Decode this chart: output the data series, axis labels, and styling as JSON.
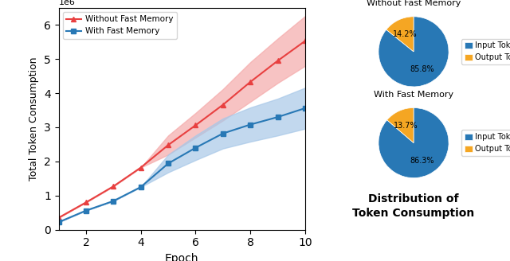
{
  "epochs": [
    1,
    2,
    3,
    4,
    5,
    6,
    7,
    8,
    9,
    10
  ],
  "without_fm_mean": [
    350000,
    800000,
    1270000,
    1820000,
    2480000,
    3060000,
    3660000,
    4330000,
    4950000,
    5530000
  ],
  "without_fm_lower": [
    350000,
    800000,
    1270000,
    1820000,
    2200000,
    2700000,
    3200000,
    3750000,
    4300000,
    4800000
  ],
  "without_fm_upper": [
    350000,
    800000,
    1270000,
    1820000,
    2760000,
    3420000,
    4120000,
    4910000,
    5600000,
    6260000
  ],
  "with_fm_mean": [
    220000,
    560000,
    840000,
    1250000,
    1940000,
    2400000,
    2820000,
    3080000,
    3300000,
    3560000
  ],
  "with_fm_lower": [
    220000,
    560000,
    840000,
    1250000,
    1680000,
    2040000,
    2380000,
    2580000,
    2760000,
    2960000
  ],
  "with_fm_upper": [
    220000,
    560000,
    840000,
    1250000,
    2200000,
    2760000,
    3260000,
    3580000,
    3840000,
    4160000
  ],
  "red_color": "#E84040",
  "blue_color": "#2878B5",
  "red_fill": "#F5AAAA",
  "blue_fill": "#A8C8E8",
  "pie1_sizes": [
    85.8,
    14.2
  ],
  "pie2_sizes": [
    86.3,
    13.7
  ],
  "pie_colors": [
    "#2878B5",
    "#F5A623"
  ],
  "pie1_labels": [
    "85.8%",
    "14.2%"
  ],
  "pie2_labels": [
    "86.3%",
    "13.7%"
  ],
  "legend_labels": [
    "Input Tokens",
    "Output Tokens"
  ],
  "pie1_title": "Without Fast Memory",
  "pie2_title": "With Fast Memory",
  "bottom_title": "Distribution of\nToken Consumption",
  "line_xlabel": "Epoch",
  "line_ylabel": "Total Token Consumption",
  "legend1": "Without Fast Memory",
  "legend2": "With Fast Memory"
}
